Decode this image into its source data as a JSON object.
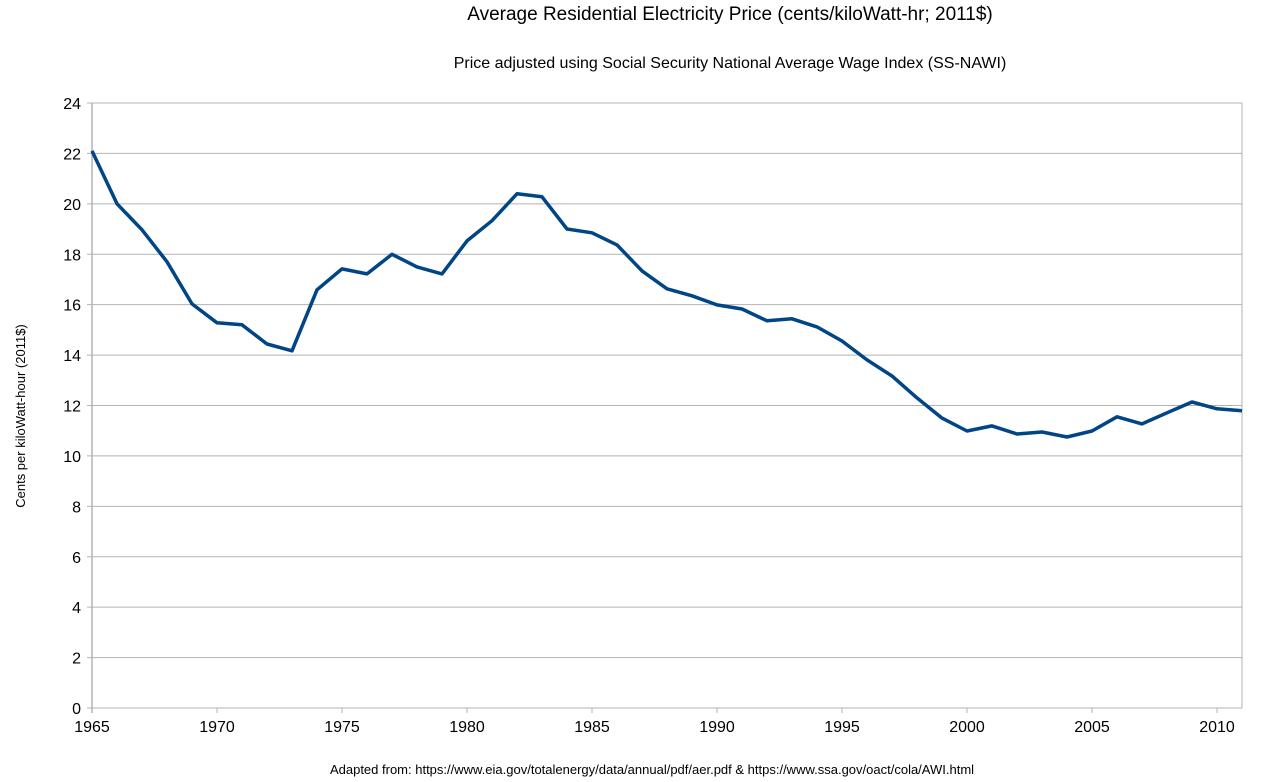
{
  "chart_data": {
    "type": "line",
    "title": "Average Residential Electricity Price (cents/kiloWatt-hr; 2011$)",
    "subtitle": "Price adjusted using Social Security National Average Wage Index (SS-NAWI)",
    "xlabel": "",
    "ylabel": "Cents per kiloWatt-hour (2011$)",
    "footnote": "Adapted from: https://www.eia.gov/totalenergy/data/annual/pdf/aer.pdf & https://www.ssa.gov/oact/cola/AWI.html",
    "xlim": [
      1965,
      2011
    ],
    "ylim": [
      0,
      24
    ],
    "grid": true,
    "legend": "none",
    "x_ticks": [
      "1965",
      "1970",
      "1975",
      "1980",
      "1985",
      "1990",
      "1995",
      "2000",
      "2005",
      "2010"
    ],
    "y_ticks": [
      "0",
      "2",
      "4",
      "6",
      "8",
      "10",
      "12",
      "14",
      "16",
      "18",
      "20",
      "22",
      "24"
    ],
    "line_color": "#004586",
    "grid_color": "#b3b3b3",
    "series": [
      {
        "name": "Price",
        "x": [
          1965,
          1966,
          1967,
          1968,
          1969,
          1970,
          1971,
          1972,
          1973,
          1974,
          1975,
          1976,
          1977,
          1978,
          1979,
          1980,
          1981,
          1982,
          1983,
          1984,
          1985,
          1986,
          1987,
          1988,
          1989,
          1990,
          1991,
          1992,
          1993,
          1994,
          1995,
          1996,
          1997,
          1998,
          1999,
          2000,
          2001,
          2002,
          2003,
          2004,
          2005,
          2006,
          2007,
          2008,
          2009,
          2010,
          2011
        ],
        "values": [
          22.1,
          20.0,
          18.97,
          17.7,
          16.03,
          15.28,
          15.2,
          14.44,
          14.17,
          16.59,
          17.42,
          17.22,
          18.0,
          17.5,
          17.22,
          18.53,
          19.33,
          20.4,
          20.28,
          19.0,
          18.85,
          18.37,
          17.34,
          16.63,
          16.35,
          15.99,
          15.83,
          15.36,
          15.44,
          15.12,
          14.56,
          13.81,
          13.17,
          12.3,
          11.5,
          10.99,
          11.19,
          10.87,
          10.95,
          10.75,
          10.99,
          11.55,
          11.27,
          11.71,
          12.14,
          11.87,
          11.79
        ]
      }
    ]
  }
}
